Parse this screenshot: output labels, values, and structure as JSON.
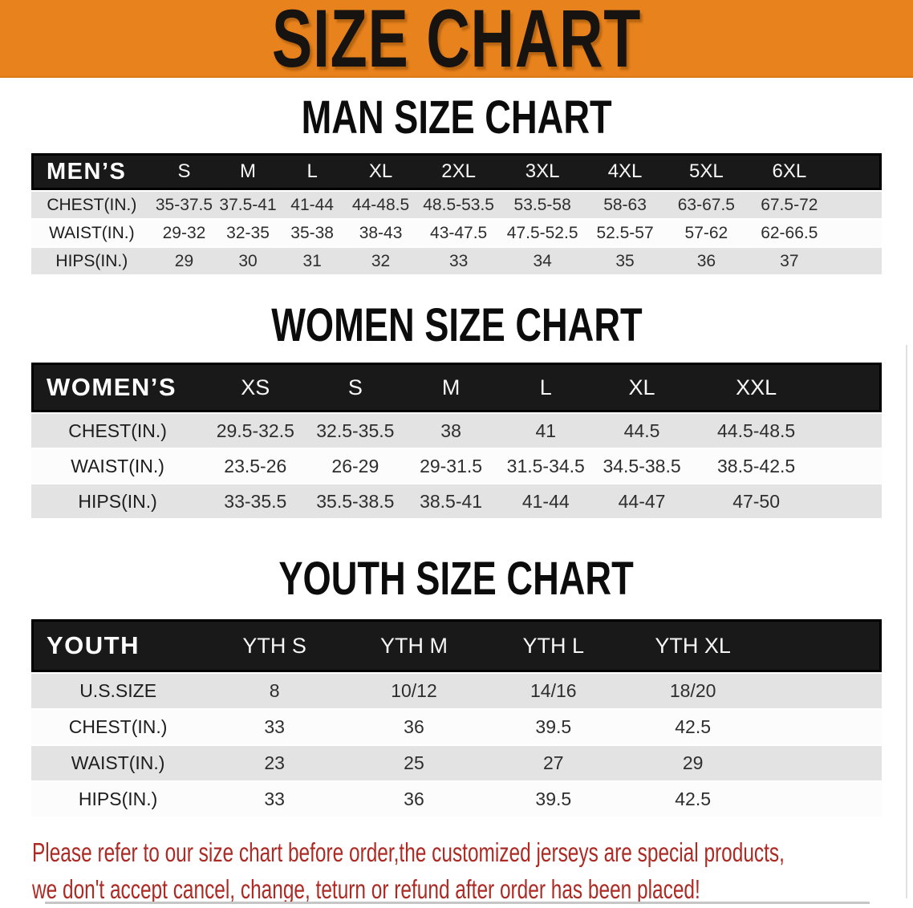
{
  "banner": {
    "title": "SIZE CHART"
  },
  "colors": {
    "banner_bg": "#E8821C",
    "table_header_bg": "#191919",
    "row_gray": "#E3E3E3",
    "row_white": "#FCFCFC",
    "disclaimer_red": "#AC2B24"
  },
  "sections": {
    "men": {
      "title": "MAN SIZE CHART",
      "header_label": "MEN’S",
      "sizes": [
        "S",
        "M",
        "L",
        "XL",
        "2XL",
        "3XL",
        "4XL",
        "5XL",
        "6XL"
      ],
      "rows": [
        {
          "label": "CHEST(IN.)",
          "values": [
            "35-37.5",
            "37.5-41",
            "41-44",
            "44-48.5",
            "48.5-53.5",
            "53.5-58",
            "58-63",
            "63-67.5",
            "67.5-72"
          ]
        },
        {
          "label": "WAIST(IN.)",
          "values": [
            "29-32",
            "32-35",
            "35-38",
            "38-43",
            "43-47.5",
            "47.5-52.5",
            "52.5-57",
            "57-62",
            "62-66.5"
          ]
        },
        {
          "label": "HIPS(IN.)",
          "values": [
            "29",
            "30",
            "31",
            "32",
            "33",
            "34",
            "35",
            "36",
            "37"
          ]
        }
      ]
    },
    "women": {
      "title": "WOMEN SIZE CHART",
      "header_label": "WOMEN’S",
      "sizes": [
        "XS",
        "S",
        "M",
        "L",
        "XL",
        "XXL"
      ],
      "rows": [
        {
          "label": "CHEST(IN.)",
          "values": [
            "29.5-32.5",
            "32.5-35.5",
            "38",
            "41",
            "44.5",
            "44.5-48.5"
          ]
        },
        {
          "label": "WAIST(IN.)",
          "values": [
            "23.5-26",
            "26-29",
            "29-31.5",
            "31.5-34.5",
            "34.5-38.5",
            "38.5-42.5"
          ]
        },
        {
          "label": "HIPS(IN.)",
          "values": [
            "33-35.5",
            "35.5-38.5",
            "38.5-41",
            "41-44",
            "44-47",
            "47-50"
          ]
        }
      ]
    },
    "youth": {
      "title": "YOUTH SIZE CHART",
      "header_label": "YOUTH",
      "sizes": [
        "YTH S",
        "YTH M",
        "YTH L",
        "YTH XL"
      ],
      "rows": [
        {
          "label": "U.S.SIZE",
          "values": [
            "8",
            "10/12",
            "14/16",
            "18/20"
          ]
        },
        {
          "label": "CHEST(IN.)",
          "values": [
            "33",
            "36",
            "39.5",
            "42.5"
          ]
        },
        {
          "label": "WAIST(IN.)",
          "values": [
            "23",
            "25",
            "27",
            "29"
          ]
        },
        {
          "label": "HIPS(IN.)",
          "values": [
            "33",
            "36",
            "39.5",
            "42.5"
          ]
        }
      ]
    }
  },
  "disclaimer": {
    "line1": "Please refer to our size chart before order,the customized jerseys are special products,",
    "line2": "we don't accept cancel, change, teturn or refund after order has been placed!"
  }
}
